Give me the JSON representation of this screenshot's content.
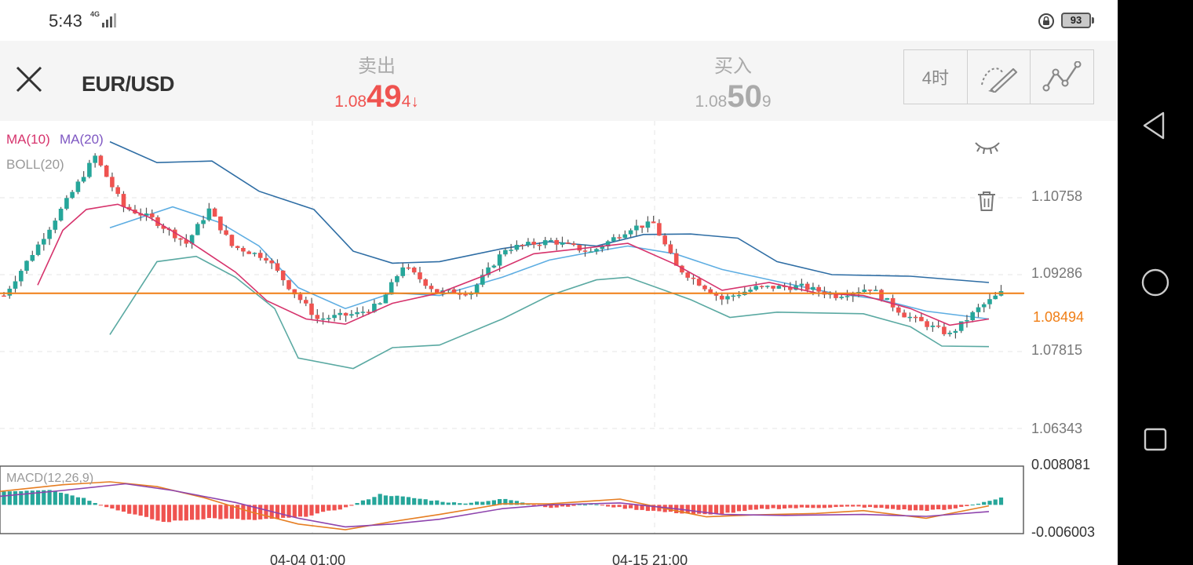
{
  "status_bar": {
    "time": "5:43",
    "network": "4G",
    "battery": "93"
  },
  "header": {
    "symbol": "EUR/USD",
    "sell": {
      "label": "卖出",
      "price_prefix": "1.08",
      "price_main": "49",
      "price_suffix": "4↓"
    },
    "buy": {
      "label": "买入",
      "price_prefix": "1.08",
      "price_main": "50",
      "price_suffix": "9"
    },
    "timeframe": "4时",
    "tools": [
      "brush-draw-icon",
      "line-chart-icon"
    ]
  },
  "nav": [
    "back-triangle-icon",
    "home-circle-icon",
    "recents-square-icon"
  ],
  "chart": {
    "legend": {
      "ma10": "MA(10)",
      "ma20": "MA(20)",
      "boll": "BOLL(20)",
      "macd": "MACD(12,26,9)"
    },
    "current_price": "1.08494",
    "price_ticks": [
      "1.10758",
      "1.09286",
      "1.07815",
      "1.06343"
    ],
    "macd_ticks": [
      "0.008081",
      "-0.006003"
    ],
    "time_labels": [
      "04-04 01:00",
      "04-15 21:00"
    ],
    "colors": {
      "up": "#26a69a",
      "down": "#ef5350",
      "ma10": "#d6336c",
      "ma20": "#5dade2",
      "boll_upper": "#2e6da4",
      "boll_lower": "#5aa9a2",
      "current_line": "#f07e15",
      "macd_dif": "#e67e22",
      "macd_dea": "#8e44ad"
    }
  },
  "chart_data": {
    "type": "candlestick",
    "symbol": "EUR/USD",
    "interval": "4H",
    "ylim": [
      1.059,
      1.118
    ],
    "current_price": 1.08494,
    "price_anchors": [
      {
        "t": 0,
        "v": 1.0845
      },
      {
        "t": 6,
        "v": 1.0942
      },
      {
        "t": 12,
        "v": 1.1043
      },
      {
        "t": 16,
        "v": 1.1112
      },
      {
        "t": 21,
        "v": 1.1015
      },
      {
        "t": 26,
        "v": 1.0992
      },
      {
        "t": 32,
        "v": 1.0945
      },
      {
        "t": 36,
        "v": 1.101
      },
      {
        "t": 40,
        "v": 1.094
      },
      {
        "t": 46,
        "v": 1.0918
      },
      {
        "t": 50,
        "v": 1.0862
      },
      {
        "t": 55,
        "v": 1.08
      },
      {
        "t": 62,
        "v": 1.081
      },
      {
        "t": 66,
        "v": 1.0828
      },
      {
        "t": 70,
        "v": 1.0902
      },
      {
        "t": 76,
        "v": 1.0852
      },
      {
        "t": 82,
        "v": 1.0852
      },
      {
        "t": 88,
        "v": 1.0935
      },
      {
        "t": 96,
        "v": 1.095
      },
      {
        "t": 103,
        "v": 1.0928
      },
      {
        "t": 110,
        "v": 1.0975
      },
      {
        "t": 114,
        "v": 1.0983
      },
      {
        "t": 118,
        "v": 1.09
      },
      {
        "t": 126,
        "v": 1.0838
      },
      {
        "t": 132,
        "v": 1.086
      },
      {
        "t": 140,
        "v": 1.0862
      },
      {
        "t": 146,
        "v": 1.0845
      },
      {
        "t": 152,
        "v": 1.086
      },
      {
        "t": 158,
        "v": 1.0808
      },
      {
        "t": 166,
        "v": 1.077
      },
      {
        "t": 171,
        "v": 1.082
      },
      {
        "t": 175,
        "v": 1.085
      }
    ],
    "bollinger": {
      "upper": [
        [
          140,
          1.114
        ],
        [
          200,
          1.11
        ],
        [
          270,
          1.1103
        ],
        [
          330,
          1.1045
        ],
        [
          400,
          1.101
        ],
        [
          450,
          1.093
        ],
        [
          500,
          1.0907
        ],
        [
          560,
          1.091
        ],
        [
          640,
          1.0935
        ],
        [
          700,
          1.0948
        ],
        [
          760,
          1.094
        ],
        [
          820,
          1.0962
        ],
        [
          880,
          1.0963
        ],
        [
          940,
          1.0955
        ],
        [
          990,
          1.091
        ],
        [
          1060,
          1.0885
        ],
        [
          1160,
          1.0882
        ],
        [
          1260,
          1.087
        ]
      ],
      "middle": [
        [
          140,
          1.0975
        ],
        [
          220,
          1.1015
        ],
        [
          280,
          1.0985
        ],
        [
          330,
          1.094
        ],
        [
          380,
          1.086
        ],
        [
          440,
          1.082
        ],
        [
          500,
          1.085
        ],
        [
          560,
          1.0845
        ],
        [
          640,
          1.088
        ],
        [
          700,
          1.0913
        ],
        [
          760,
          1.093
        ],
        [
          800,
          1.094
        ],
        [
          860,
          1.0925
        ],
        [
          920,
          1.0895
        ],
        [
          990,
          1.0872
        ],
        [
          1060,
          1.085
        ],
        [
          1120,
          1.0838
        ],
        [
          1180,
          1.0815
        ],
        [
          1260,
          1.08
        ]
      ],
      "lower": [
        [
          140,
          1.077
        ],
        [
          200,
          1.091
        ],
        [
          250,
          1.092
        ],
        [
          300,
          1.088
        ],
        [
          350,
          1.082
        ],
        [
          380,
          1.0725
        ],
        [
          450,
          1.0705
        ],
        [
          500,
          1.0745
        ],
        [
          560,
          1.075
        ],
        [
          640,
          1.08
        ],
        [
          700,
          1.0845
        ],
        [
          760,
          1.0875
        ],
        [
          800,
          1.088
        ],
        [
          880,
          1.0837
        ],
        [
          930,
          1.0803
        ],
        [
          990,
          1.0813
        ],
        [
          1100,
          1.081
        ],
        [
          1160,
          1.0785
        ],
        [
          1200,
          1.0748
        ],
        [
          1260,
          1.0747
        ]
      ]
    },
    "ma10": [
      [
        48,
        1.0865
      ],
      [
        80,
        1.097
      ],
      [
        110,
        1.101
      ],
      [
        150,
        1.102
      ],
      [
        190,
        1.0995
      ],
      [
        240,
        1.095
      ],
      [
        300,
        1.089
      ],
      [
        340,
        1.0835
      ],
      [
        390,
        1.08
      ],
      [
        440,
        1.079
      ],
      [
        500,
        1.083
      ],
      [
        560,
        1.085
      ],
      [
        620,
        1.0885
      ],
      [
        680,
        1.0925
      ],
      [
        740,
        1.0935
      ],
      [
        800,
        1.0945
      ],
      [
        860,
        1.0905
      ],
      [
        920,
        1.0855
      ],
      [
        980,
        1.087
      ],
      [
        1040,
        1.085
      ],
      [
        1100,
        1.0845
      ],
      [
        1160,
        1.082
      ],
      [
        1210,
        1.0788
      ],
      [
        1260,
        1.08
      ]
    ],
    "macd": {
      "ylim": [
        -0.006003,
        0.008081
      ],
      "histogram_anchors": [
        {
          "t": 0,
          "v": 0.0028
        },
        {
          "t": 8,
          "v": 0.0032
        },
        {
          "t": 14,
          "v": 0.0014
        },
        {
          "t": 19,
          "v": -0.0008
        },
        {
          "t": 28,
          "v": -0.0036
        },
        {
          "t": 36,
          "v": -0.0028
        },
        {
          "t": 44,
          "v": -0.0032
        },
        {
          "t": 52,
          "v": -0.0026
        },
        {
          "t": 60,
          "v": -0.0006
        },
        {
          "t": 66,
          "v": 0.0022
        },
        {
          "t": 72,
          "v": 0.0014
        },
        {
          "t": 80,
          "v": 0.0003
        },
        {
          "t": 88,
          "v": 0.0012
        },
        {
          "t": 96,
          "v": -0.0006
        },
        {
          "t": 103,
          "v": 0.0002
        },
        {
          "t": 108,
          "v": -0.0006
        },
        {
          "t": 116,
          "v": -0.0015
        },
        {
          "t": 124,
          "v": -0.0021
        },
        {
          "t": 134,
          "v": -0.0008
        },
        {
          "t": 150,
          "v": -0.0004
        },
        {
          "t": 160,
          "v": -0.0012
        },
        {
          "t": 166,
          "v": -0.001
        },
        {
          "t": 175,
          "v": 0.0014
        }
      ],
      "dif": [
        [
          0,
          0.0028
        ],
        [
          80,
          0.0042
        ],
        [
          140,
          0.0048
        ],
        [
          200,
          0.0038
        ],
        [
          260,
          0.0015
        ],
        [
          320,
          -0.0015
        ],
        [
          380,
          -0.004
        ],
        [
          440,
          -0.0052
        ],
        [
          500,
          -0.0035
        ],
        [
          560,
          -0.002
        ],
        [
          640,
          0.0002
        ],
        [
          700,
          0.0002
        ],
        [
          790,
          0.0012
        ],
        [
          860,
          -0.0012
        ],
        [
          900,
          -0.0025
        ],
        [
          960,
          -0.0021
        ],
        [
          1040,
          -0.0018
        ],
        [
          1100,
          -0.0012
        ],
        [
          1180,
          -0.0028
        ],
        [
          1260,
          -0.0002
        ]
      ],
      "dea": [
        [
          0,
          0.0018
        ],
        [
          80,
          0.003
        ],
        [
          160,
          0.0044
        ],
        [
          220,
          0.003
        ],
        [
          300,
          0.0005
        ],
        [
          380,
          -0.0028
        ],
        [
          440,
          -0.0046
        ],
        [
          500,
          -0.004
        ],
        [
          560,
          -0.003
        ],
        [
          640,
          -0.0008
        ],
        [
          700,
          0.0
        ],
        [
          790,
          0.0004
        ],
        [
          860,
          -0.0008
        ],
        [
          920,
          -0.002
        ],
        [
          1000,
          -0.0022
        ],
        [
          1100,
          -0.002
        ],
        [
          1180,
          -0.0024
        ],
        [
          1260,
          -0.0014
        ]
      ]
    }
  }
}
